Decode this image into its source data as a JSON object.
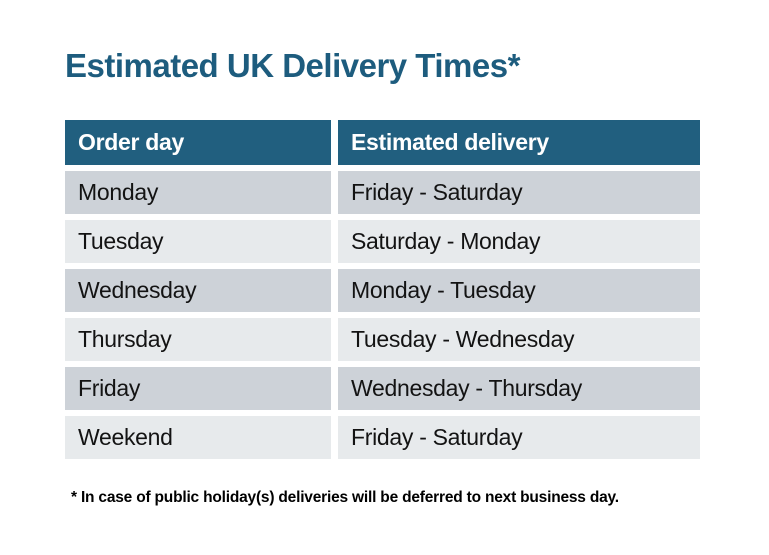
{
  "title": "Estimated UK Delivery Times*",
  "table": {
    "headers": [
      "Order day",
      "Estimated delivery"
    ],
    "rows": [
      {
        "order_day": "Monday",
        "estimated_delivery": "Friday - Saturday"
      },
      {
        "order_day": "Tuesday",
        "estimated_delivery": "Saturday - Monday"
      },
      {
        "order_day": "Wednesday",
        "estimated_delivery": "Monday - Tuesday"
      },
      {
        "order_day": "Thursday",
        "estimated_delivery": "Tuesday - Wednesday"
      },
      {
        "order_day": "Friday",
        "estimated_delivery": "Wednesday - Thursday"
      },
      {
        "order_day": "Weekend",
        "estimated_delivery": "Friday - Saturday"
      }
    ]
  },
  "footnote": "* In case of public holiday(s) deliveries will be deferred to next business day.",
  "colors": {
    "title": "#1D5C7E",
    "header_bg": "#215F7F",
    "header_text": "#FFFFFF",
    "row_dark": "#CDD2D8",
    "row_light": "#E7EAEC",
    "cell_text": "#131313",
    "footnote_text": "#000000",
    "background": "#FFFFFF"
  }
}
